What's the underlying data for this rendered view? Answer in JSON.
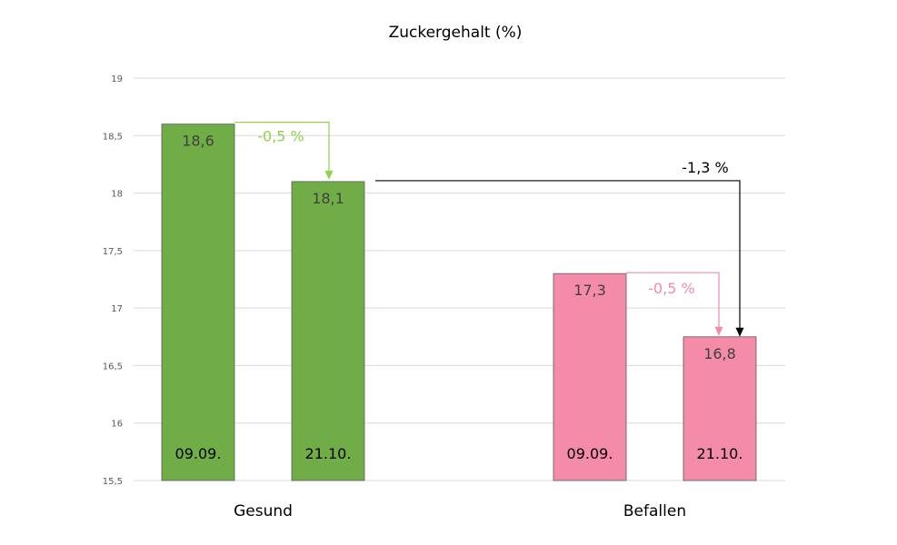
{
  "chart_data": {
    "type": "bar",
    "title": "Zuckergehalt (%)",
    "xlabel": "",
    "ylabel": "",
    "ylim": [
      15.5,
      19
    ],
    "yticks": [
      15.5,
      16,
      16.5,
      17,
      17.5,
      18,
      18.5,
      19
    ],
    "ytick_labels": [
      "15,5",
      "16",
      "16,5",
      "17",
      "17,5",
      "18",
      "18,5",
      "19"
    ],
    "grid": true,
    "groups": [
      "Gesund",
      "Befallen"
    ],
    "bars": [
      {
        "group": "Gesund",
        "date": "09.09.",
        "value": 18.6,
        "label": "18,6",
        "color": "#70ad47"
      },
      {
        "group": "Gesund",
        "date": "21.10.",
        "value": 18.1,
        "label": "18,1",
        "color": "#70ad47"
      },
      {
        "group": "Befallen",
        "date": "09.09.",
        "value": 17.3,
        "label": "17,3",
        "color": "#f48ba8"
      },
      {
        "group": "Befallen",
        "date": "21.10.",
        "value": 16.75,
        "label": "16,8",
        "color": "#f48ba8"
      }
    ],
    "annotations": [
      {
        "text": "-0,5 %",
        "from_bar": 0,
        "to_bar": 1,
        "color": "#92d050"
      },
      {
        "text": "-0,5 %",
        "from_bar": 2,
        "to_bar": 3,
        "color": "#f48ba8"
      },
      {
        "text": "-1,3 %",
        "from_bar": 1,
        "to_bar": 3,
        "color": "#000000"
      }
    ]
  }
}
